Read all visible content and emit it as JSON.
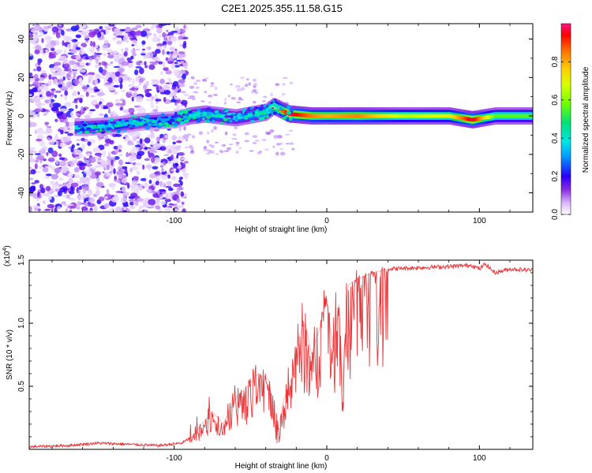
{
  "chart_data": [
    {
      "type": "heatmap",
      "title": "C2E1.2025.355.11.58.G15",
      "xlabel": "Height of straight line (km)",
      "ylabel": "Frequency (Hz)",
      "xlim": [
        -195,
        135
      ],
      "ylim": [
        -50,
        48
      ],
      "x_ticks": [
        -100,
        0,
        100
      ],
      "x_tick_labels": [
        "-100",
        "0",
        "100"
      ],
      "y_ticks": [
        -40,
        -20,
        0,
        20,
        40
      ],
      "y_tick_labels": [
        "-40",
        "-20",
        "0",
        "20",
        "40"
      ],
      "colorbar": {
        "label": "Normalized spectral amplitude",
        "range": [
          0.0,
          1.0
        ],
        "ticks": [
          0.0,
          0.2,
          0.4,
          0.6,
          0.8
        ],
        "tick_labels": [
          "0.0",
          "0.2",
          "0.4",
          "0.6",
          "0.8"
        ]
      },
      "ridge": {
        "x": [
          -160,
          -140,
          -120,
          -100,
          -90,
          -80,
          -60,
          -40,
          -35,
          -25,
          -10,
          0,
          20,
          50,
          80,
          95,
          110,
          135
        ],
        "freq": [
          -6,
          -5,
          -3,
          -2,
          0,
          1,
          -1,
          2,
          5,
          1,
          0,
          0,
          0,
          0,
          0,
          -2,
          0,
          0
        ],
        "amplitude": [
          0.35,
          0.3,
          0.3,
          0.25,
          0.3,
          0.35,
          0.3,
          0.4,
          0.65,
          0.95,
          0.8,
          0.75,
          0.8,
          0.6,
          0.65,
          0.95,
          0.5,
          0.5
        ]
      }
    },
    {
      "type": "line",
      "xlabel": "Height of straight line (km)",
      "ylabel": "SNR (10 * v/v)",
      "y_multiplier": "(x10",
      "y_multiplier_exp": "4",
      "xlim": [
        -195,
        135
      ],
      "ylim": [
        0,
        1.5
      ],
      "x_ticks": [
        -100,
        0,
        100
      ],
      "x_tick_labels": [
        "-100",
        "0",
        "100"
      ],
      "y_ticks": [
        0.5,
        1.0,
        1.5
      ],
      "y_tick_labels": [
        "0.5",
        "1.0",
        "1.5"
      ],
      "color": "#e8373a",
      "series": [
        {
          "name": "SNR",
          "x": [
            -195,
            -170,
            -150,
            -130,
            -110,
            -95,
            -88,
            -82,
            -75,
            -68,
            -60,
            -52,
            -45,
            -38,
            -33,
            -28,
            -22,
            -18,
            -14,
            -10,
            -6,
            -2,
            0,
            4,
            8,
            10,
            14,
            20,
            30,
            40,
            60,
            80,
            95,
            100,
            104,
            110,
            120,
            135
          ],
          "y": [
            0.02,
            0.03,
            0.05,
            0.04,
            0.03,
            0.05,
            0.1,
            0.2,
            0.3,
            0.2,
            0.4,
            0.5,
            0.6,
            0.55,
            0.1,
            0.4,
            0.6,
            0.9,
            1.0,
            0.75,
            0.9,
            1.1,
            1.2,
            0.8,
            1.15,
            0.45,
            1.3,
            1.35,
            1.4,
            1.43,
            1.44,
            1.45,
            1.46,
            1.43,
            1.47,
            1.4,
            1.43,
            1.42
          ]
        }
      ]
    }
  ]
}
